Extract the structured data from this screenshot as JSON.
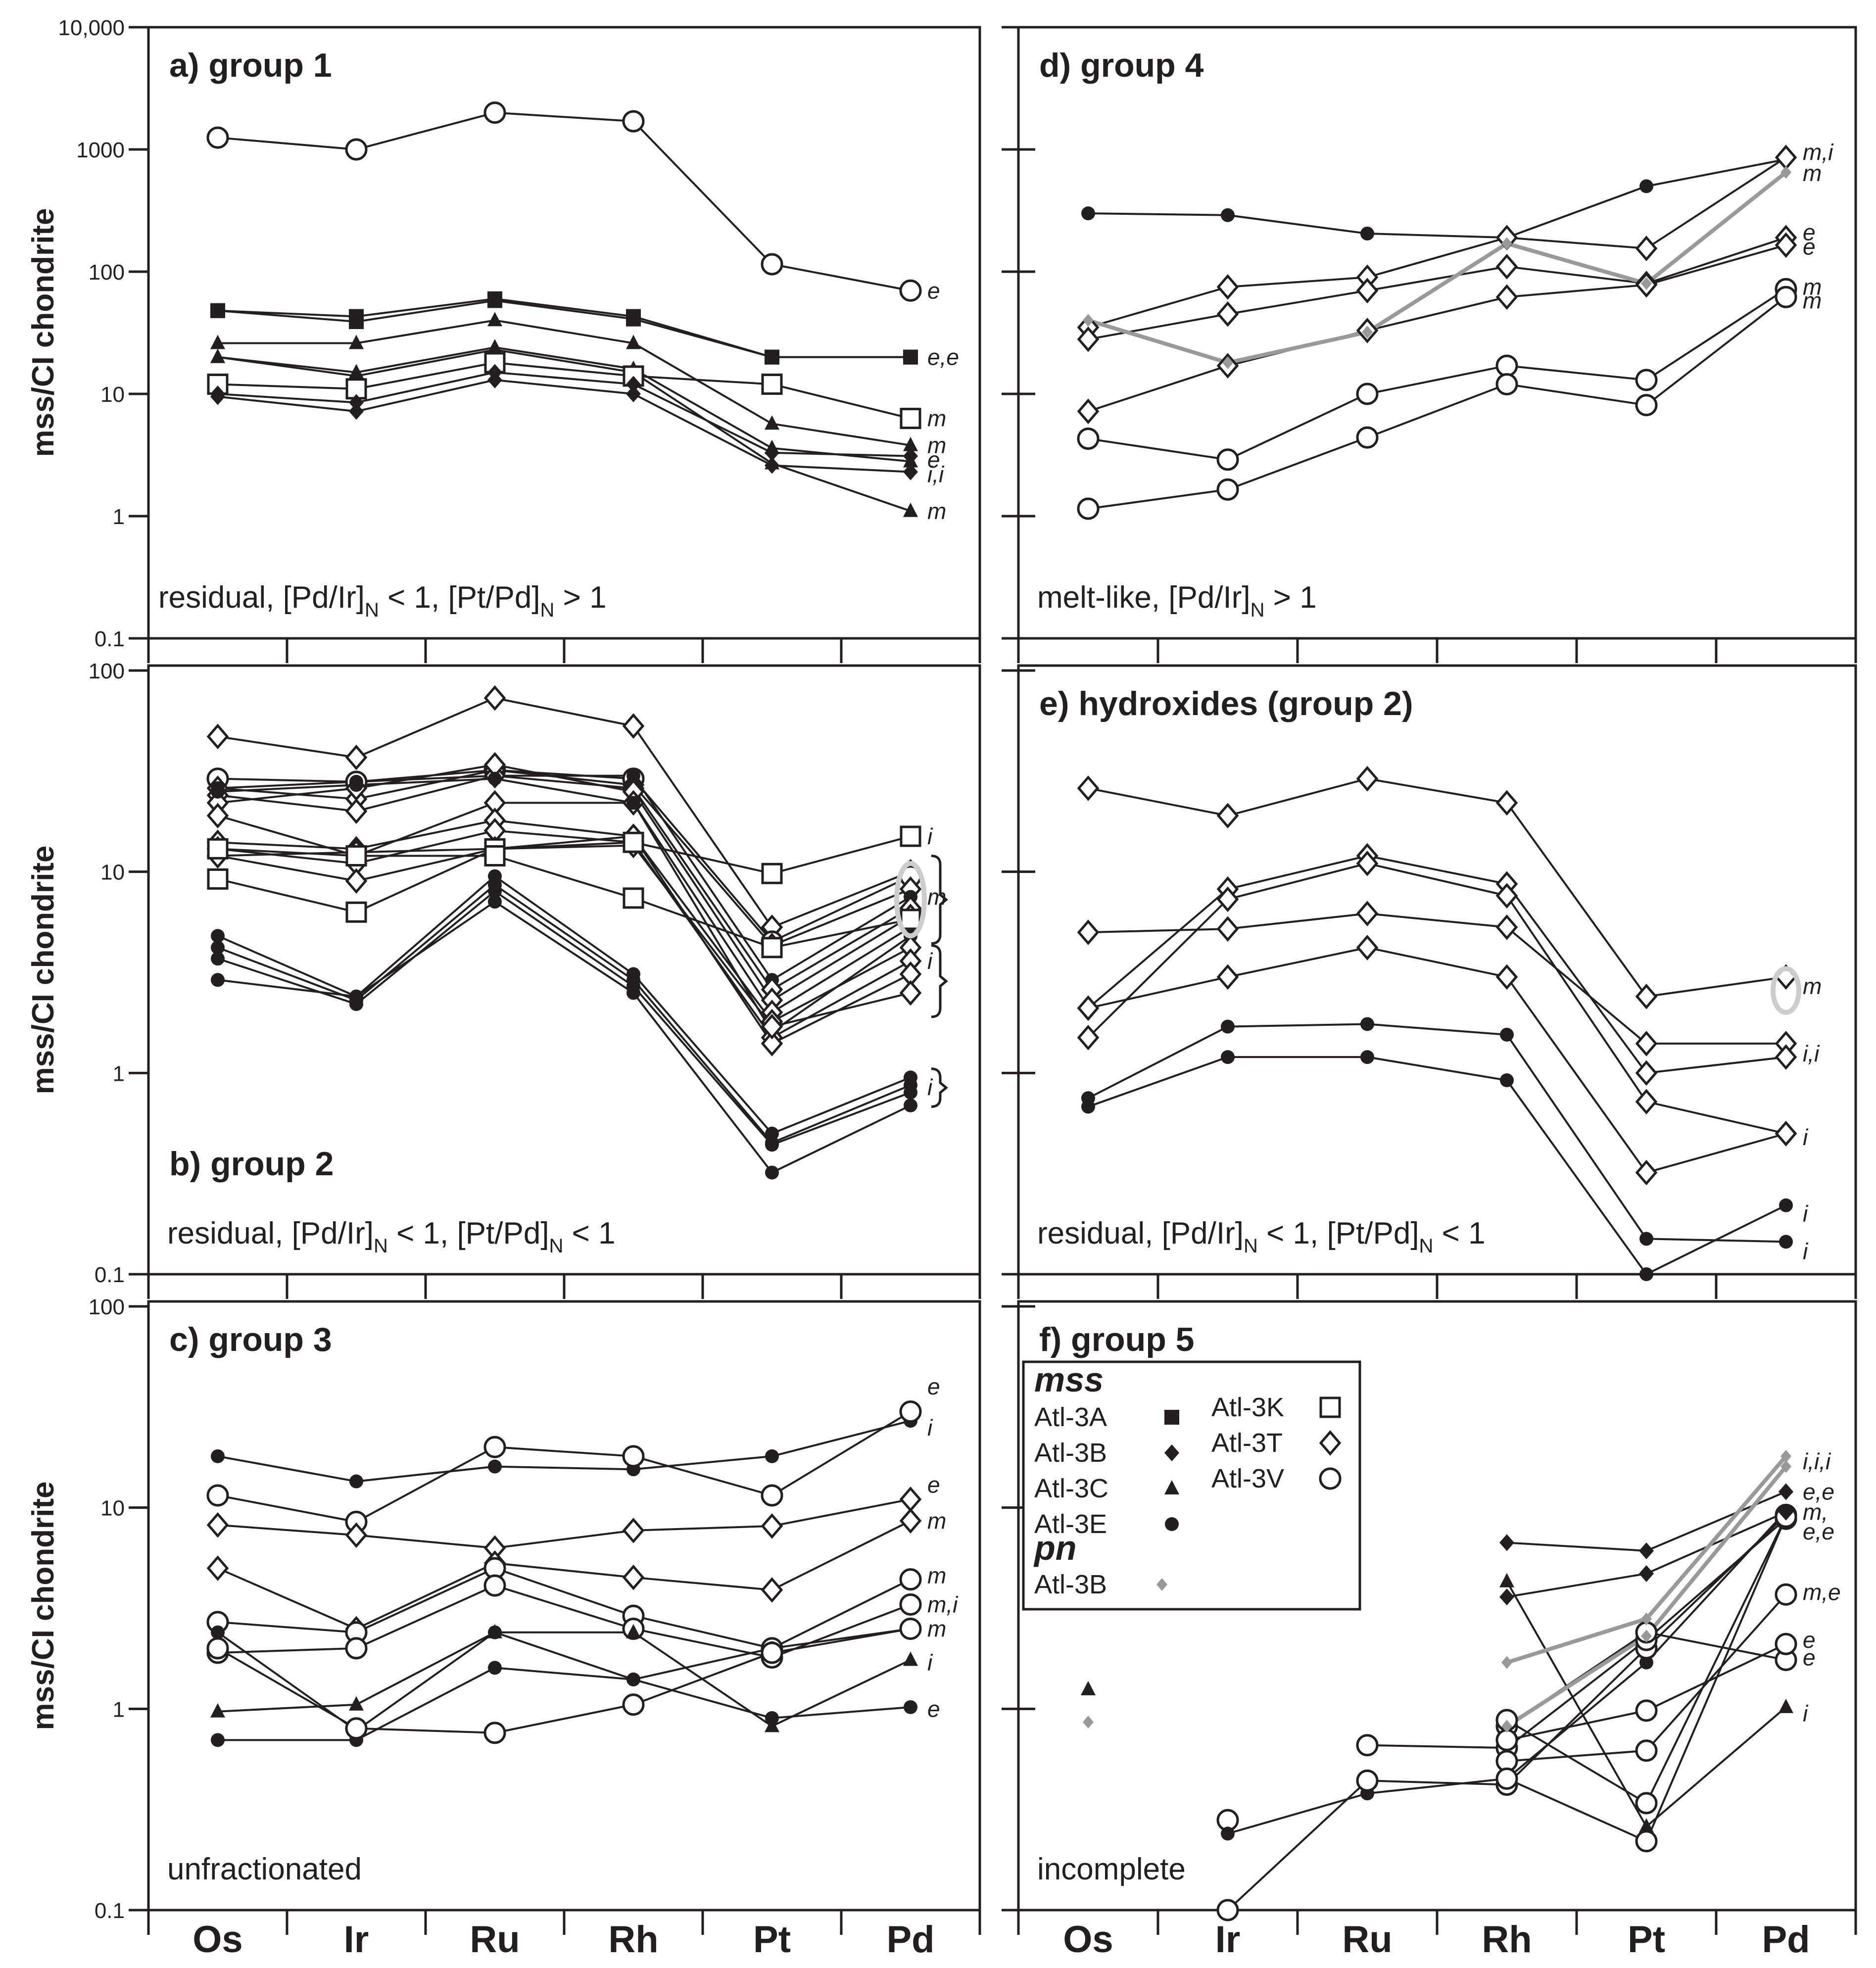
{
  "figure": {
    "y_axis_label": "mss/CI chondrite",
    "elements": [
      "Os",
      "Ir",
      "Ru",
      "Rh",
      "Pt",
      "Pd"
    ],
    "colors": {
      "ink": "#231f20",
      "pn": "#999999",
      "highlight": "#cccccc"
    }
  },
  "legend": {
    "mss_title": "mss",
    "pn_title": "pn",
    "samples": [
      {
        "id": "3A",
        "name": "Atl-3A",
        "marker": "filled-square"
      },
      {
        "id": "3B",
        "name": "Atl-3B",
        "marker": "filled-diamond"
      },
      {
        "id": "3C",
        "name": "Atl-3C",
        "marker": "filled-triangle"
      },
      {
        "id": "3E",
        "name": "Atl-3E",
        "marker": "filled-circle"
      },
      {
        "id": "3K",
        "name": "Atl-3K",
        "marker": "open-square"
      },
      {
        "id": "3T",
        "name": "Atl-3T",
        "marker": "open-diamond"
      },
      {
        "id": "3V",
        "name": "Atl-3V",
        "marker": "open-circle"
      }
    ],
    "pn_sample": {
      "name": "Atl-3B",
      "marker": "grey-diamond"
    }
  },
  "chart_data": [
    {
      "panel": "a",
      "type": "line",
      "title": "a) group 1",
      "note": "residual, [Pd/Ir]N < 1, [Pt/Pd]N > 1",
      "note_parts": [
        "residual, [Pd/Ir]",
        "N",
        " < 1, [Pt/Pd]",
        "N",
        " > 1"
      ],
      "ylim": [
        0.1,
        10000
      ],
      "yscale": "log",
      "ytick_labels": [
        "0.1",
        "1",
        "10",
        "100",
        "1000",
        "10,000"
      ],
      "ylabel": "mss/CI chondrite",
      "series": [
        {
          "sample": "3V",
          "values": [
            1250,
            1000,
            2000,
            1700,
            115,
            70
          ]
        },
        {
          "sample": "3A",
          "values": [
            48,
            43,
            60,
            43,
            20,
            20
          ]
        },
        {
          "sample": "3A",
          "values": [
            48,
            39,
            58,
            41,
            20,
            20
          ]
        },
        {
          "sample": "3C",
          "values": [
            26,
            26,
            40,
            26,
            5.7,
            3.8
          ]
        },
        {
          "sample": "3C",
          "values": [
            20,
            15,
            24,
            16,
            3.6,
            2.8
          ]
        },
        {
          "sample": "3C",
          "values": [
            20,
            14,
            23,
            15,
            2.7,
            1.1
          ]
        },
        {
          "sample": "3K",
          "values": [
            12,
            11,
            18,
            14,
            12,
            6.3
          ]
        },
        {
          "sample": "3B",
          "values": [
            10,
            8.5,
            15,
            12,
            3.3,
            3.1
          ]
        },
        {
          "sample": "3B",
          "values": [
            9.5,
            7.2,
            13,
            10,
            2.6,
            2.3
          ]
        }
      ],
      "annotations": [
        {
          "text": "e",
          "value": 70
        },
        {
          "text": "e,e",
          "value": 20
        },
        {
          "text": "m",
          "value": 6.3
        },
        {
          "text": "m",
          "value": 3.8
        },
        {
          "text": "e",
          "value": 2.9
        },
        {
          "text": "i,i",
          "value": 2.2
        },
        {
          "text": "m",
          "value": 1.1
        }
      ]
    },
    {
      "panel": "b",
      "type": "line",
      "title": "b) group 2",
      "note": "residual, [Pd/Ir]N < 1, [Pt/Pd]N < 1",
      "note_parts": [
        "residual, [Pd/Ir]",
        "N",
        " < 1, [Pt/Pd]",
        "N",
        " < 1"
      ],
      "ylim": [
        0.1,
        100
      ],
      "yscale": "log",
      "ytick_labels": [
        "0.1",
        "1",
        "10",
        "100"
      ],
      "ylabel": "mss/CI chondrite",
      "series": [
        {
          "sample": "3T",
          "values": [
            47,
            37,
            73,
            53,
            5.3,
            10
          ]
        },
        {
          "sample": "3V",
          "values": [
            29,
            28,
            32,
            29,
            4.5,
            9.5
          ]
        },
        {
          "sample": "3T",
          "values": [
            26,
            23,
            32,
            27,
            4.3,
            8.2
          ]
        },
        {
          "sample": "3E",
          "values": [
            26,
            28,
            30,
            30,
            2.9,
            7.5
          ]
        },
        {
          "sample": "3T",
          "values": [
            24,
            20,
            30,
            26,
            2.6,
            6.6
          ]
        },
        {
          "sample": "3T",
          "values": [
            22,
            26,
            34,
            25,
            2.3,
            6.0
          ]
        },
        {
          "sample": "3T",
          "values": [
            19,
            12,
            22,
            22,
            2.0,
            5.3
          ]
        },
        {
          "sample": "3E",
          "values": [
            25,
            27,
            29,
            22,
            1.6,
            4.8
          ]
        },
        {
          "sample": "3T",
          "values": [
            14,
            13,
            18,
            15,
            1.8,
            4.2
          ]
        },
        {
          "sample": "3T",
          "values": [
            13,
            11,
            16,
            14,
            1.5,
            3.6
          ]
        },
        {
          "sample": "3T",
          "values": [
            12,
            9,
            13,
            15,
            1.4,
            3.1
          ]
        },
        {
          "sample": "3T",
          "values": [
            12,
            12.5,
            13,
            13.5,
            1.7,
            2.5
          ]
        },
        {
          "sample": "3K",
          "values": [
            9.2,
            6.3,
            13,
            14,
            9.8,
            15
          ]
        },
        {
          "sample": "3K",
          "values": [
            13,
            12,
            12,
            7.4,
            4.2,
            5.8
          ]
        },
        {
          "sample": "3E",
          "values": [
            4.8,
            2.4,
            9.5,
            3.1,
            0.5,
            0.95
          ]
        },
        {
          "sample": "3E",
          "values": [
            4.2,
            2.3,
            8.6,
            2.9,
            0.45,
            0.87
          ]
        },
        {
          "sample": "3E",
          "values": [
            3.7,
            2.2,
            8.0,
            2.7,
            0.44,
            0.8
          ]
        },
        {
          "sample": "3E",
          "values": [
            2.9,
            2.4,
            7.1,
            2.5,
            0.32,
            0.69
          ]
        }
      ],
      "annotations": [
        {
          "text": "i",
          "value": 15
        },
        {
          "text": "m",
          "value": 7.5
        },
        {
          "text": "i",
          "value": 3.6
        },
        {
          "text": "i",
          "value": 0.85
        }
      ]
    },
    {
      "panel": "c",
      "type": "line",
      "title": "c) group 3",
      "note": "unfractionated",
      "ylim": [
        0.1,
        100
      ],
      "yscale": "log",
      "ytick_labels": [
        "0.1",
        "1",
        "10",
        "100"
      ],
      "ylabel": "mss/CI chondrite",
      "series": [
        {
          "sample": "3E",
          "values": [
            18,
            13.5,
            16,
            15.5,
            18,
            27
          ]
        },
        {
          "sample": "3V",
          "values": [
            11.5,
            8.5,
            20,
            18,
            11.5,
            30
          ]
        },
        {
          "sample": "3T",
          "values": [
            8.2,
            7.3,
            6.3,
            7.7,
            8.1,
            11
          ]
        },
        {
          "sample": "3T",
          "values": [
            5.0,
            2.5,
            5.3,
            4.5,
            3.9,
            8.6
          ]
        },
        {
          "sample": "3V",
          "values": [
            2.7,
            2.4,
            5.0,
            2.9,
            2.0,
            4.4
          ]
        },
        {
          "sample": "3V",
          "values": [
            1.9,
            2.0,
            4.1,
            2.5,
            1.8,
            3.3
          ]
        },
        {
          "sample": "3E",
          "values": [
            2.4,
            0.78,
            2.4,
            1.4,
            2.0,
            2.5
          ]
        },
        {
          "sample": "3C",
          "values": [
            0.97,
            1.05,
            2.4,
            2.4,
            0.82,
            1.75
          ]
        },
        {
          "sample": "3E",
          "values": [
            0.7,
            0.7,
            1.6,
            1.4,
            0.9,
            1.02
          ]
        },
        {
          "sample": "3V",
          "values": [
            2.0,
            0.8,
            0.76,
            1.05,
            1.9,
            2.5
          ]
        }
      ],
      "annotations": [
        {
          "text": "e",
          "value": 40
        },
        {
          "text": "i",
          "value": 25
        },
        {
          "text": "e",
          "value": 13
        },
        {
          "text": "m",
          "value": 8.6
        },
        {
          "text": "m",
          "value": 4.6
        },
        {
          "text": "m,i",
          "value": 3.3
        },
        {
          "text": "m",
          "value": 2.5
        },
        {
          "text": "i",
          "value": 1.7
        },
        {
          "text": "e",
          "value": 1.0
        }
      ]
    },
    {
      "panel": "d",
      "type": "line",
      "title": "d) group 4",
      "note": "melt-like, [Pd/Ir]N > 1",
      "note_parts": [
        "melt-like, [Pd/Ir]",
        "N",
        " > 1"
      ],
      "ylim": [
        0.1,
        10000
      ],
      "yscale": "log",
      "ytick_labels": [],
      "series": [
        {
          "sample": "3E",
          "values": [
            300,
            290,
            205,
            190,
            500,
            830
          ]
        },
        {
          "sample": "3T",
          "values": [
            35,
            75,
            90,
            190,
            155,
            860
          ]
        },
        {
          "sample": "3T",
          "values": [
            28,
            45,
            70,
            110,
            80,
            190
          ]
        },
        {
          "sample": "3T",
          "values": [
            7.2,
            17,
            33,
            62,
            78,
            165
          ]
        },
        {
          "sample": "3V",
          "values": [
            4.3,
            2.9,
            10,
            17,
            13,
            72
          ]
        },
        {
          "sample": "3V",
          "values": [
            1.15,
            1.65,
            4.4,
            12,
            8.1,
            62
          ]
        },
        {
          "sample": "pn",
          "values": [
            40,
            18,
            32,
            170,
            80,
            650
          ]
        }
      ],
      "annotations": [
        {
          "text": "m,i",
          "value": 950
        },
        {
          "text": "m",
          "value": 640
        },
        {
          "text": "e",
          "value": 210
        },
        {
          "text": "e",
          "value": 160
        },
        {
          "text": "m",
          "value": 75
        },
        {
          "text": "m",
          "value": 58
        }
      ]
    },
    {
      "panel": "e",
      "type": "line",
      "title": "e) hydroxides (group 2)",
      "note": "residual, [Pd/Ir]N < 1, [Pt/Pd]N < 1",
      "note_parts": [
        "residual, [Pd/Ir]",
        "N",
        " < 1, [Pt/Pd]",
        "N",
        " < 1"
      ],
      "ylim": [
        0.1,
        100
      ],
      "yscale": "log",
      "ytick_labels": [],
      "series": [
        {
          "sample": "3T",
          "values": [
            26,
            19,
            29,
            22,
            2.4,
            3.0
          ]
        },
        {
          "sample": "3T",
          "values": [
            5.0,
            5.2,
            6.2,
            5.3,
            1.4,
            1.4
          ]
        },
        {
          "sample": "3T",
          "values": [
            2.1,
            8.2,
            12,
            8.7,
            1.0,
            1.2
          ]
        },
        {
          "sample": "3T",
          "values": [
            1.5,
            7.3,
            11,
            7.6,
            0.72,
            0.5
          ]
        },
        {
          "sample": "3T",
          "values": [
            2.1,
            3.0,
            4.2,
            3.0,
            0.32,
            0.5
          ]
        },
        {
          "sample": "3E",
          "values": [
            0.75,
            1.7,
            1.75,
            1.55,
            0.15,
            0.145
          ]
        },
        {
          "sample": "3E",
          "values": [
            0.68,
            1.2,
            1.2,
            0.92,
            0.1,
            0.22
          ]
        }
      ],
      "annotations": [
        {
          "text": "m",
          "value": 2.7
        },
        {
          "text": "i,i",
          "value": 1.25
        },
        {
          "text": "i",
          "value": 0.48
        },
        {
          "text": "i",
          "value": 0.2
        },
        {
          "text": "i",
          "value": 0.13
        }
      ]
    },
    {
      "panel": "f",
      "type": "line",
      "title": "f) group 5",
      "note": "incomplete",
      "ylim": [
        0.1,
        100
      ],
      "yscale": "log",
      "ytick_labels": [],
      "series": [
        {
          "sample": "3C",
          "values": [
            1.25,
            null,
            null,
            null,
            null,
            null
          ]
        },
        {
          "sample": "pn",
          "values": [
            0.86,
            null,
            null,
            null,
            null,
            null
          ]
        },
        {
          "sample": "3V",
          "values": [
            null,
            0.28,
            null,
            null,
            null,
            null
          ]
        },
        {
          "sample": "3E",
          "values": [
            null,
            0.24,
            0.38,
            0.45,
            1.7,
            9.6
          ]
        },
        {
          "sample": "3V",
          "values": [
            null,
            0.1,
            0.44,
            0.42,
            2.0,
            9.2
          ]
        },
        {
          "sample": "3V",
          "values": [
            null,
            null,
            0.66,
            0.64,
            2.2,
            8.8
          ]
        },
        {
          "sample": "3V",
          "values": [
            null,
            null,
            null,
            0.82,
            2.4,
            1.75
          ]
        },
        {
          "sample": "3V",
          "values": [
            null,
            null,
            null,
            0.7,
            0.98,
            2.1
          ]
        },
        {
          "sample": "3V",
          "values": [
            null,
            null,
            null,
            0.55,
            0.62,
            3.7
          ]
        },
        {
          "sample": "3V",
          "values": [
            null,
            null,
            null,
            0.88,
            0.34,
            9.0
          ]
        },
        {
          "sample": "3V",
          "values": [
            null,
            null,
            null,
            0.45,
            0.22,
            9.0
          ]
        },
        {
          "sample": "3B",
          "values": [
            null,
            null,
            null,
            6.7,
            6.1,
            12
          ]
        },
        {
          "sample": "3B",
          "values": [
            null,
            null,
            null,
            3.6,
            4.7,
            9.5
          ]
        },
        {
          "sample": "3C",
          "values": [
            null,
            null,
            null,
            4.3,
            0.26,
            1.02
          ]
        },
        {
          "sample": "pn",
          "values": [
            null,
            null,
            null,
            1.7,
            2.8,
            18
          ]
        },
        {
          "sample": "pn",
          "values": [
            null,
            null,
            null,
            0.82,
            2.3,
            16
          ]
        }
      ],
      "annotations": [
        {
          "text": "i,i,i",
          "value": 17
        },
        {
          "text": "e,e",
          "value": 12
        },
        {
          "text": "m,",
          "value": 9.5
        },
        {
          "text": "e,e",
          "value": 7.6
        },
        {
          "text": "m,e",
          "value": 3.8
        },
        {
          "text": "e",
          "value": 2.2
        },
        {
          "text": "e",
          "value": 1.8
        },
        {
          "text": "i",
          "value": 0.95
        }
      ]
    }
  ]
}
